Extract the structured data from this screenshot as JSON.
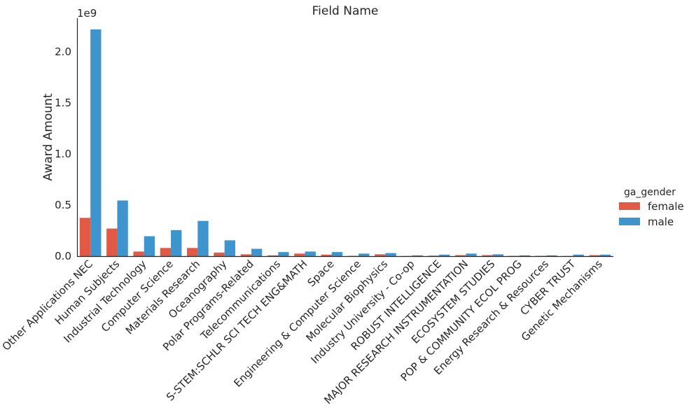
{
  "chart_data": {
    "type": "bar",
    "title": "Field Name",
    "xlabel": "",
    "ylabel": "Award Amount",
    "y_offset_text": "1e9",
    "ylim": [
      0,
      2.33
    ],
    "y_ticks": [
      0.0,
      0.5,
      1.0,
      1.5,
      2.0
    ],
    "y_tick_labels": [
      "0.0",
      "0.5",
      "1.0",
      "1.5",
      "2.0"
    ],
    "grid": false,
    "legend": {
      "title": "ga_gender",
      "placement": "right"
    },
    "categories": [
      "Other Applications NEC",
      "Human Subjects",
      "Industrial Technology",
      "Computer Science",
      "Materials Research",
      "Oceanography",
      "Polar Programs-Related",
      "Telecommunications",
      "S-STEM:SCHLR SCI TECH ENG&MATH",
      "Space",
      "Engineering & Computer Science",
      "Molecular Biophysics",
      "Industry University - Co-op",
      "ROBUST INTELLIGENCE",
      "MAJOR RESEARCH INSTRUMENTATION",
      "ECOSYSTEM STUDIES",
      "POP & COMMUNITY ECOL PROG",
      "Energy Research & Resources",
      "CYBER TRUST",
      "Genetic Mechanisms"
    ],
    "series": [
      {
        "name": "female",
        "color": "#e05a45",
        "values": [
          0.375,
          0.27,
          0.045,
          0.08,
          0.08,
          0.035,
          0.018,
          0.008,
          0.025,
          0.015,
          0.003,
          0.018,
          0.002,
          0.005,
          0.01,
          0.01,
          0.003,
          0.003,
          0.002,
          0.01
        ]
      },
      {
        "name": "male",
        "color": "#3e95cd",
        "values": [
          2.22,
          0.545,
          0.195,
          0.255,
          0.345,
          0.155,
          0.072,
          0.04,
          0.045,
          0.04,
          0.025,
          0.03,
          0.008,
          0.015,
          0.025,
          0.018,
          0.008,
          0.008,
          0.015,
          0.015
        ]
      }
    ]
  }
}
